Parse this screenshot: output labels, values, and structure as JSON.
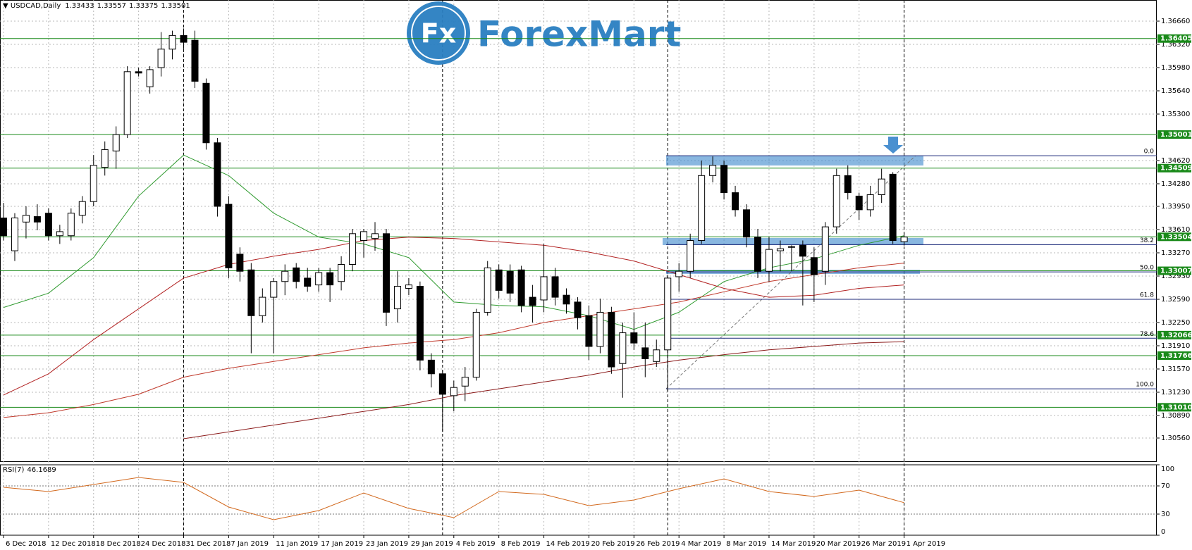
{
  "chart_data": [
    {
      "type": "candlestick",
      "title": "USDCAD,Daily",
      "categories": [
        "6 Dec 2018",
        null,
        null,
        null,
        "12 Dec 2018",
        null,
        null,
        null,
        "18 Dec 2018",
        null,
        null,
        null,
        "24 Dec 2018",
        null,
        null,
        null,
        "31 Dec 2018",
        null,
        null,
        null,
        "7 Jan 2019",
        null,
        null,
        null,
        "11 Jan 2019",
        null,
        null,
        null,
        "17 Jan 2019",
        null,
        null,
        null,
        "23 Jan 2019",
        null,
        null,
        null,
        "29 Jan 2019",
        null,
        null,
        null,
        "4 Feb 2019",
        null,
        null,
        null,
        "8 Feb 2019",
        null,
        null,
        null,
        "14 Feb 2019",
        null,
        null,
        null,
        "20 Feb 2019",
        null,
        null,
        null,
        "26 Feb 2019",
        null,
        null,
        null,
        "4 Mar 2019",
        null,
        null,
        null,
        "8 Mar 2019",
        null,
        null,
        null,
        "14 Mar 2019",
        null,
        null,
        null,
        "20 Mar 2019",
        null,
        null,
        null,
        "26 Mar 2019",
        null,
        null,
        null,
        "1 Apr 2019"
      ],
      "ohlc": [
        [
          1.3378,
          1.34,
          1.3345,
          1.3352
        ],
        [
          1.333,
          1.3385,
          1.3315,
          1.3378
        ],
        [
          1.3372,
          1.3395,
          1.3348,
          1.3382
        ],
        [
          1.338,
          1.3398,
          1.336,
          1.3372
        ],
        [
          1.3385,
          1.3392,
          1.3345,
          1.3352
        ],
        [
          1.3352,
          1.3368,
          1.334,
          1.3358
        ],
        [
          1.3352,
          1.3392,
          1.3345,
          1.3385
        ],
        [
          1.3382,
          1.341,
          1.337,
          1.3402
        ],
        [
          1.3402,
          1.347,
          1.3395,
          1.3455
        ],
        [
          1.3452,
          1.349,
          1.344,
          1.3478
        ],
        [
          1.3476,
          1.3512,
          1.345,
          1.35
        ],
        [
          1.35,
          1.36,
          1.3495,
          1.3592
        ],
        [
          1.3592,
          1.3598,
          1.3585,
          1.359
        ],
        [
          1.357,
          1.36,
          1.356,
          1.3595
        ],
        [
          1.3598,
          1.365,
          1.3585,
          1.3625
        ],
        [
          1.3625,
          1.3652,
          1.361,
          1.3645
        ],
        [
          1.3645,
          1.3655,
          1.3625,
          1.3635
        ],
        [
          1.3638,
          1.3652,
          1.3568,
          1.3578
        ],
        [
          1.3575,
          1.3582,
          1.3478,
          1.3488
        ],
        [
          1.3488,
          1.3495,
          1.338,
          1.3395
        ],
        [
          1.3398,
          1.341,
          1.329,
          1.3305
        ],
        [
          1.3325,
          1.3335,
          1.3285,
          1.33
        ],
        [
          1.3302,
          1.3312,
          1.318,
          1.3235
        ],
        [
          1.3235,
          1.3275,
          1.3225,
          1.3262
        ],
        [
          1.3262,
          1.329,
          1.318,
          1.3285
        ],
        [
          1.3285,
          1.331,
          1.3265,
          1.33
        ],
        [
          1.3305,
          1.3312,
          1.3275,
          1.3285
        ],
        [
          1.329,
          1.3305,
          1.327,
          1.3278
        ],
        [
          1.328,
          1.3305,
          1.327,
          1.3298
        ],
        [
          1.3298,
          1.3305,
          1.3255,
          1.328
        ],
        [
          1.3285,
          1.3322,
          1.3272,
          1.331
        ],
        [
          1.331,
          1.3362,
          1.33,
          1.3355
        ],
        [
          1.3345,
          1.3362,
          1.332,
          1.3358
        ],
        [
          1.3348,
          1.3372,
          1.333,
          1.3355
        ],
        [
          1.3355,
          1.3362,
          1.322,
          1.324
        ],
        [
          1.3245,
          1.33,
          1.3225,
          1.3278
        ],
        [
          1.3275,
          1.329,
          1.3265,
          1.328
        ],
        [
          1.3278,
          1.3285,
          1.3155,
          1.317
        ],
        [
          1.317,
          1.318,
          1.313,
          1.315
        ],
        [
          1.315,
          1.3155,
          1.3065,
          1.312
        ],
        [
          1.3118,
          1.314,
          1.3095,
          1.313
        ],
        [
          1.3132,
          1.316,
          1.311,
          1.3145
        ],
        [
          1.3145,
          1.3245,
          1.314,
          1.324
        ],
        [
          1.324,
          1.3315,
          1.3235,
          1.3305
        ],
        [
          1.3302,
          1.331,
          1.326,
          1.3272
        ],
        [
          1.33,
          1.331,
          1.3255,
          1.3268
        ],
        [
          1.3302,
          1.3308,
          1.324,
          1.325
        ],
        [
          1.3262,
          1.328,
          1.3225,
          1.325
        ],
        [
          1.3258,
          1.334,
          1.324,
          1.3292
        ],
        [
          1.3292,
          1.3305,
          1.325,
          1.3262
        ],
        [
          1.3265,
          1.3275,
          1.3238,
          1.3252
        ],
        [
          1.3255,
          1.3262,
          1.3215,
          1.3232
        ],
        [
          1.3235,
          1.325,
          1.317,
          1.319
        ],
        [
          1.319,
          1.326,
          1.318,
          1.324
        ],
        [
          1.324,
          1.3248,
          1.315,
          1.316
        ],
        [
          1.3165,
          1.3225,
          1.3115,
          1.321
        ],
        [
          1.321,
          1.324,
          1.3185,
          1.3195
        ],
        [
          1.3188,
          1.3225,
          1.3145,
          1.3172
        ],
        [
          1.3168,
          1.32,
          1.316,
          1.3185
        ],
        [
          1.3185,
          1.3295,
          1.3125,
          1.329
        ],
        [
          1.3292,
          1.3312,
          1.327,
          1.33
        ],
        [
          1.33,
          1.3355,
          1.329,
          1.3345
        ],
        [
          1.3345,
          1.3462,
          1.334,
          1.344
        ],
        [
          1.344,
          1.3468,
          1.343,
          1.3455
        ],
        [
          1.3455,
          1.3462,
          1.3405,
          1.3415
        ],
        [
          1.3415,
          1.3425,
          1.338,
          1.339
        ],
        [
          1.339,
          1.3398,
          1.3335,
          1.335
        ],
        [
          1.335,
          1.3362,
          1.329,
          1.33
        ],
        [
          1.33,
          1.335,
          1.3285,
          1.3332
        ],
        [
          1.333,
          1.3345,
          1.33,
          1.3333
        ],
        [
          1.3335,
          1.3338,
          1.33,
          1.3336
        ],
        [
          1.3338,
          1.3345,
          1.325,
          1.3322
        ],
        [
          1.332,
          1.3335,
          1.3255,
          1.3295
        ],
        [
          1.33,
          1.3372,
          1.328,
          1.3365
        ],
        [
          1.3365,
          1.345,
          1.3355,
          1.344
        ],
        [
          1.344,
          1.3455,
          1.3405,
          1.3415
        ],
        [
          1.341,
          1.3415,
          1.3375,
          1.339
        ],
        [
          1.339,
          1.3425,
          1.338,
          1.3412
        ],
        [
          1.3412,
          1.345,
          1.34,
          1.3435
        ],
        [
          1.3442,
          1.3445,
          1.334,
          1.3345
        ],
        [
          1.33433,
          1.33557,
          1.33375,
          1.33501
        ]
      ],
      "up_color": "#ffffff",
      "down_color": "#000000",
      "ylim": [
        1.3022,
        1.36969
      ],
      "yticks": [
        {
          "value": 1.3666,
          "label": "1.36660"
        },
        {
          "value": 1.3632,
          "label": "1.36320"
        },
        {
          "value": 1.3598,
          "label": "1.35980"
        },
        {
          "value": 1.3564,
          "label": "1.35640"
        },
        {
          "value": 1.353,
          "label": "1.35300"
        },
        {
          "value": 1.3462,
          "label": "1.34620"
        },
        {
          "value": 1.3428,
          "label": "1.34280"
        },
        {
          "value": 1.3395,
          "label": "1.33950"
        },
        {
          "value": 1.3361,
          "label": "1.33610"
        },
        {
          "value": 1.3327,
          "label": "1.33270"
        },
        {
          "value": 1.3293,
          "label": "1.32930"
        },
        {
          "value": 1.3259,
          "label": "1.32590"
        },
        {
          "value": 1.3225,
          "label": "1.32250"
        },
        {
          "value": 1.3191,
          "label": "1.31910"
        },
        {
          "value": 1.3157,
          "label": "1.31570"
        },
        {
          "value": 1.3123,
          "label": "1.31230"
        },
        {
          "value": 1.3089,
          "label": "1.30890"
        },
        {
          "value": 1.3056,
          "label": "1.30560"
        }
      ],
      "grid": true,
      "series": [
        {
          "color": "#2e9a2e",
          "x": [
            0,
            4,
            8,
            12,
            16,
            20,
            24,
            28,
            32,
            36,
            40,
            44,
            48,
            52,
            56,
            60,
            64,
            68,
            72,
            76,
            80
          ],
          "values": [
            1.3247,
            1.3268,
            1.332,
            1.341,
            1.347,
            1.344,
            1.3385,
            1.335,
            1.334,
            1.332,
            1.3255,
            1.325,
            1.3248,
            1.3235,
            1.3215,
            1.324,
            1.3285,
            1.3305,
            1.3318,
            1.3338,
            1.3352
          ]
        },
        {
          "color": "#b22222",
          "x": [
            0,
            4,
            8,
            12,
            16,
            20,
            24,
            28,
            32,
            36,
            40,
            44,
            48,
            52,
            56,
            60,
            64,
            68,
            72,
            76,
            80
          ],
          "values": [
            1.3119,
            1.315,
            1.32,
            1.3245,
            1.329,
            1.331,
            1.3322,
            1.3332,
            1.3345,
            1.335,
            1.3348,
            1.3343,
            1.3338,
            1.3328,
            1.3315,
            1.3295,
            1.3275,
            1.3262,
            1.3265,
            1.3275,
            1.328
          ]
        },
        {
          "color": "#c0392b",
          "x": [
            0,
            4,
            8,
            12,
            16,
            20,
            24,
            28,
            32,
            36,
            40,
            44,
            48,
            52,
            56,
            60,
            64,
            68,
            72,
            76,
            80
          ],
          "values": [
            1.3086,
            1.3093,
            1.3105,
            1.312,
            1.3145,
            1.3158,
            1.3168,
            1.3178,
            1.3188,
            1.3195,
            1.32,
            1.321,
            1.3225,
            1.3235,
            1.3245,
            1.3255,
            1.327,
            1.3285,
            1.3295,
            1.3305,
            1.3312
          ]
        },
        {
          "color": "#8b1a1a",
          "x": [
            0,
            4,
            8,
            12,
            16,
            20,
            24,
            28,
            32,
            36,
            40,
            44,
            48,
            52,
            56,
            60,
            64,
            68,
            72,
            76,
            80
          ],
          "values": [
            null,
            null,
            null,
            null,
            1.3055,
            1.3065,
            1.3075,
            1.3085,
            1.3095,
            1.3105,
            1.3118,
            1.3128,
            1.3138,
            1.3148,
            1.316,
            1.317,
            1.3178,
            1.3185,
            1.319,
            1.3195,
            1.3197
          ]
        }
      ],
      "levels": [
        1.36405,
        1.35001,
        1.34509,
        1.33504,
        1.33007,
        1.32066,
        1.31766,
        {
          "value": 1.3101,
          "label": "1.31010"
        }
      ],
      "level_color": "#1a8a1a",
      "fib_levels": [
        {
          "label": "0.0",
          "value": 1.3469
        },
        {
          "label": "38.2",
          "value": 1.3339
        },
        {
          "label": "50.0",
          "value": 1.3299
        },
        {
          "label": "61.8",
          "value": 1.3259
        },
        {
          "label": "78.6",
          "value": 1.3202
        },
        {
          "label": "100.0",
          "value": 1.3128
        }
      ],
      "fib_color": "#1c2a7a"
    },
    {
      "type": "line",
      "title": "RSI(7)",
      "x": [
        0,
        4,
        8,
        12,
        16,
        20,
        24,
        28,
        32,
        36,
        40,
        44,
        48,
        52,
        56,
        60,
        64,
        68,
        72,
        76,
        80
      ],
      "values": [
        68,
        62,
        72,
        82,
        75,
        40,
        22,
        35,
        60,
        38,
        25,
        62,
        58,
        42,
        50,
        66,
        80,
        62,
        55,
        64,
        46.1689
      ],
      "color": "#d2691e",
      "ylim": [
        0,
        100
      ],
      "yticks": [
        100,
        70,
        30,
        0
      ]
    }
  ],
  "watermark": {
    "icon": "Fx",
    "brand": "ForexMart"
  }
}
